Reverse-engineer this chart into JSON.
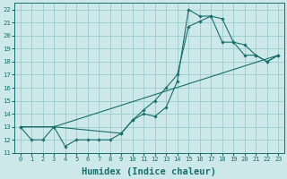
{
  "xlabel": "Humidex (Indice chaleur)",
  "bg_color": "#cce8e8",
  "grid_color": "#99cccc",
  "line_color": "#1a6e6e",
  "xlim": [
    -0.5,
    23.5
  ],
  "ylim": [
    11,
    22.5
  ],
  "xticks": [
    0,
    1,
    2,
    3,
    4,
    5,
    6,
    7,
    8,
    9,
    10,
    11,
    12,
    13,
    14,
    15,
    16,
    17,
    18,
    19,
    20,
    21,
    22,
    23
  ],
  "yticks": [
    11,
    12,
    13,
    14,
    15,
    16,
    17,
    18,
    19,
    20,
    21,
    22
  ],
  "line1_x": [
    0,
    1,
    2,
    3,
    4,
    5,
    6,
    7,
    8,
    9,
    10,
    11,
    12,
    13,
    14,
    15,
    16,
    17,
    18,
    19,
    20,
    21,
    22,
    23
  ],
  "line1_y": [
    13,
    12,
    12,
    13,
    11.5,
    12,
    12,
    12,
    12,
    12.5,
    13.5,
    14,
    13.8,
    14.5,
    16.5,
    22,
    21.5,
    21.5,
    19.5,
    19.5,
    18.5,
    18.5,
    18,
    18.5
  ],
  "line2_x": [
    0,
    3,
    9,
    10,
    11,
    12,
    13,
    14,
    15,
    16,
    17,
    18,
    19,
    20,
    21,
    22,
    23
  ],
  "line2_y": [
    13,
    13,
    12.5,
    13.5,
    14.3,
    15.0,
    16.0,
    17.0,
    20.7,
    21.1,
    21.5,
    21.3,
    19.5,
    19.3,
    18.5,
    18,
    18.5
  ],
  "line3_x": [
    0,
    3,
    23
  ],
  "line3_y": [
    13,
    13,
    18.5
  ],
  "xlabel_fontsize": 7.5
}
